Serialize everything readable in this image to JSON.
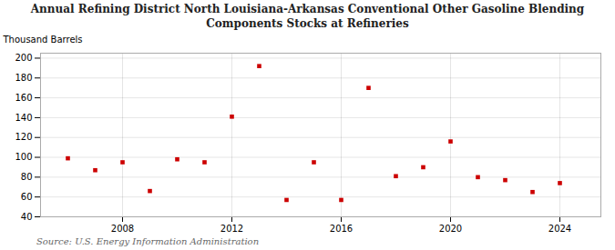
{
  "chart_data": {
    "type": "scatter",
    "title": "Annual Refining District North Louisiana-Arkansas Conventional Other Gasoline Blending\nComponents Stocks at Refineries",
    "ylabel": "Thousand Barrels",
    "source": "Source: U.S. Energy Information Administration",
    "x": [
      2006,
      2007,
      2008,
      2009,
      2010,
      2011,
      2012,
      2013,
      2014,
      2015,
      2016,
      2017,
      2018,
      2019,
      2020,
      2021,
      2022,
      2023,
      2024
    ],
    "values": [
      99,
      87,
      95,
      66,
      98,
      95,
      141,
      192,
      57,
      95,
      57,
      170,
      81,
      90,
      116,
      80,
      77,
      65,
      74
    ],
    "color": "#cc0000",
    "marker": "square",
    "xlim": [
      2005.0,
      2025.5
    ],
    "ylim": [
      40,
      205
    ],
    "xticks": [
      2008,
      2012,
      2016,
      2020,
      2024
    ],
    "yticks": [
      40,
      60,
      80,
      100,
      120,
      140,
      160,
      180,
      200
    ],
    "grid": true
  }
}
